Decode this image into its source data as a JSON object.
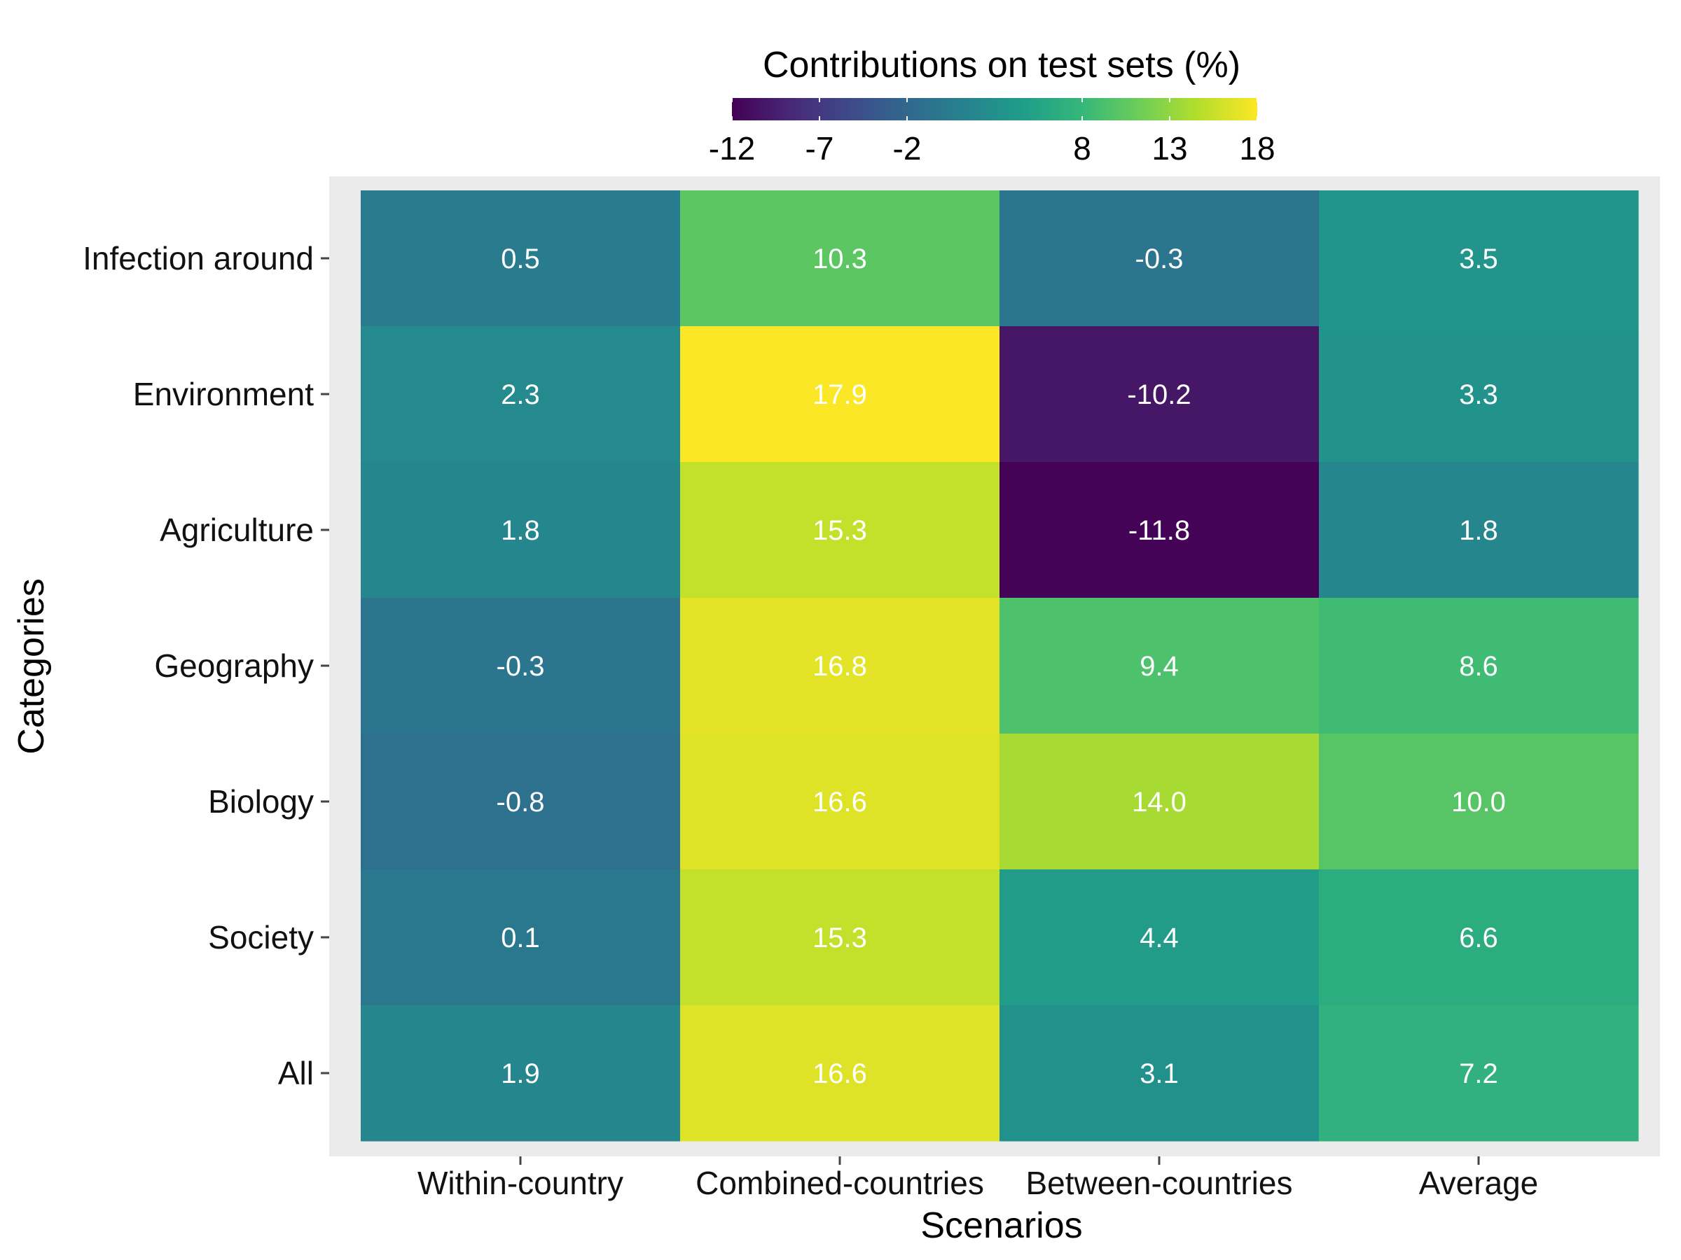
{
  "chart_data": {
    "type": "heatmap",
    "xlabel": "Scenarios",
    "ylabel": "Categories",
    "x_categories": [
      "Within-country",
      "Combined-countries",
      "Between-countries",
      "Average"
    ],
    "y_categories": [
      "Infection around",
      "Environment",
      "Agriculture",
      "Geography",
      "Biology",
      "Society",
      "All"
    ],
    "values": [
      [
        0.5,
        10.3,
        -0.3,
        3.5
      ],
      [
        2.3,
        17.9,
        -10.2,
        3.3
      ],
      [
        1.8,
        15.3,
        -11.8,
        1.8
      ],
      [
        -0.3,
        16.8,
        9.4,
        8.6
      ],
      [
        -0.8,
        16.6,
        14.0,
        10.0
      ],
      [
        0.1,
        15.3,
        4.4,
        6.6
      ],
      [
        1.9,
        16.6,
        3.1,
        7.2
      ]
    ],
    "value_labels": [
      [
        "0.5",
        "10.3",
        "-0.3",
        "3.5"
      ],
      [
        "2.3",
        "17.9",
        "-10.2",
        "3.3"
      ],
      [
        "1.8",
        "15.3",
        "-11.8",
        "1.8"
      ],
      [
        "-0.3",
        "16.8",
        "9.4",
        "8.6"
      ],
      [
        "-0.8",
        "16.6",
        "14.0",
        "10.0"
      ],
      [
        "0.1",
        "15.3",
        "4.4",
        "6.6"
      ],
      [
        "1.9",
        "16.6",
        "3.1",
        "7.2"
      ]
    ],
    "legend": {
      "title": "Contributions on test sets (%)",
      "position": "top",
      "range": [
        -12,
        18
      ],
      "ticks": [
        -12,
        -7,
        -2,
        8,
        13,
        18
      ],
      "tick_labels": [
        "-12",
        "-7",
        "-2",
        "8",
        "13",
        "18"
      ],
      "colormap": "viridis"
    },
    "colors": {
      "panel_background": "#ebebeb",
      "cell_text": "#ffffff",
      "viridis_stops": [
        "#440154",
        "#482878",
        "#3e4989",
        "#31688e",
        "#26828e",
        "#1f9e89",
        "#35b779",
        "#6ece58",
        "#b5de2b",
        "#fde725"
      ]
    }
  }
}
